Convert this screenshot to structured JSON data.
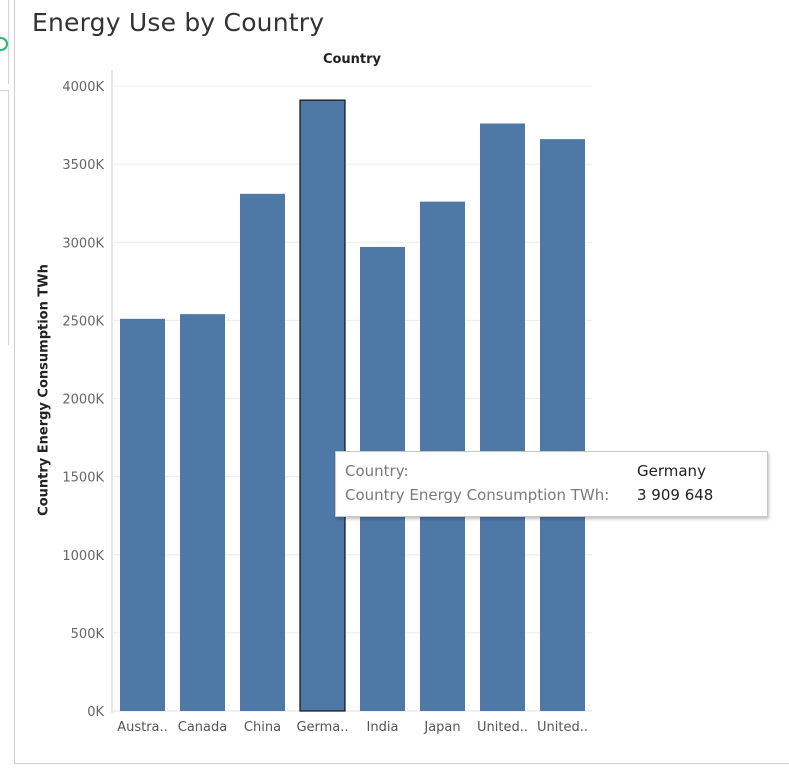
{
  "title": "Energy Use by Country",
  "chart_data": {
    "type": "bar",
    "column_header": "Country",
    "ylabel": "Country Energy Consumption TWh",
    "categories": [
      "Austra..",
      "Canada",
      "China",
      "Germa..",
      "India",
      "Japan",
      "United..",
      "United.."
    ],
    "values": [
      2510000,
      2540000,
      3310000,
      3909648,
      2970000,
      3260000,
      3760000,
      3660000
    ],
    "ylim": [
      0,
      4000000
    ],
    "yticks": [
      0,
      500000,
      1000000,
      1500000,
      2000000,
      2500000,
      3000000,
      3500000,
      4000000
    ],
    "ytick_labels": [
      "0K",
      "500K",
      "1000K",
      "1500K",
      "2000K",
      "2500K",
      "3000K",
      "3500K",
      "4000K"
    ],
    "highlighted_index": 3,
    "grid": true,
    "bar_color": "#4e79a7"
  },
  "tooltip": {
    "row1_label": "Country:",
    "row1_value": "Germany",
    "row2_label": "Country Energy Consumption TWh:",
    "row2_value": "3 909 648"
  }
}
